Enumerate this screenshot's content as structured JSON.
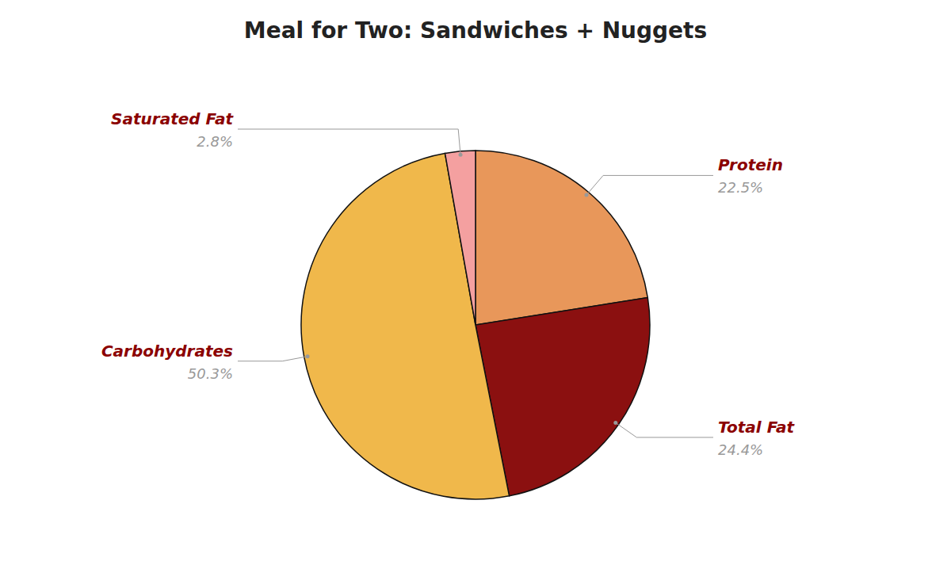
{
  "chart_data": {
    "type": "pie",
    "title": "Meal for Two: Sandwiches + Nuggets",
    "categories": [
      "Protein",
      "Total Fat",
      "Carbohydrates",
      "Saturated Fat"
    ],
    "values": [
      22.5,
      24.4,
      50.3,
      2.8
    ],
    "value_labels": [
      "22.5%",
      "24.4%",
      "50.3%",
      "2.8%"
    ],
    "colors": [
      "#E8975A",
      "#8B1010",
      "#F0B84B",
      "#F4A0A0"
    ],
    "data_labels": true
  }
}
